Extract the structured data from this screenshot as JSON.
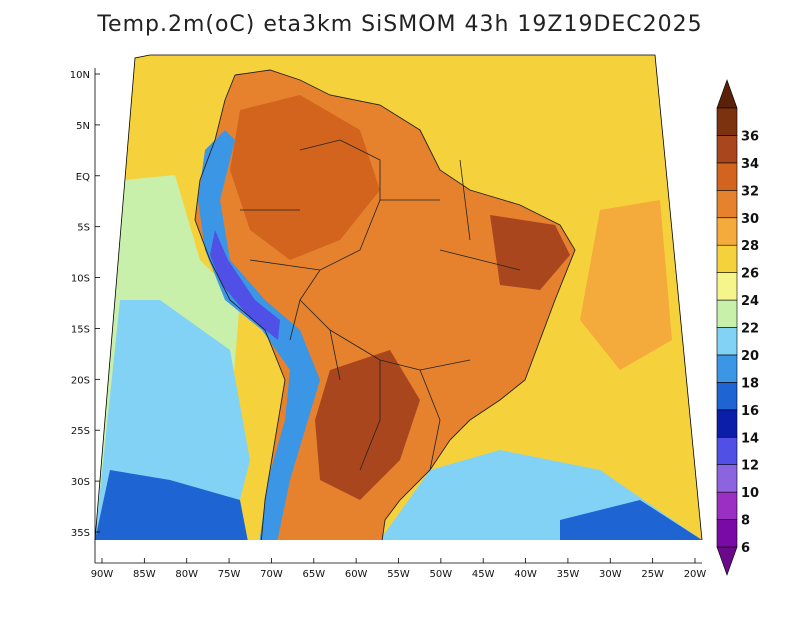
{
  "title": "Temp.2m(oC) eta3km SiSMOM 43h 19Z19DEC2025",
  "map": {
    "type": "filled-contour-map",
    "variable": "2m temperature",
    "units": "oC",
    "region": "South America",
    "lat_labels": [
      "10N",
      "5N",
      "EQ",
      "5S",
      "10S",
      "15S",
      "20S",
      "25S",
      "30S",
      "35S"
    ],
    "lon_labels": [
      "90W",
      "85W",
      "80W",
      "75W",
      "70W",
      "65W",
      "60W",
      "55W",
      "50W",
      "45W",
      "40W",
      "35W",
      "30W",
      "25W",
      "20W"
    ],
    "lat_values": [
      10,
      5,
      0,
      -5,
      -10,
      -15,
      -20,
      -25,
      -30,
      -35
    ],
    "lon_values": [
      -90,
      -85,
      -80,
      -75,
      -70,
      -65,
      -60,
      -55,
      -50,
      -45,
      -40,
      -35,
      -30,
      -25,
      -20
    ]
  },
  "colorbar": {
    "levels": [
      "6",
      "8",
      "10",
      "12",
      "14",
      "16",
      "18",
      "20",
      "22",
      "24",
      "26",
      "28",
      "30",
      "32",
      "34",
      "36"
    ],
    "colors": [
      "#7a0aa6",
      "#9b2fc4",
      "#8c64e0",
      "#5050e6",
      "#0a1eaa",
      "#1e64d2",
      "#3c96e6",
      "#82d2f5",
      "#c8f0aa",
      "#f5f58c",
      "#f5d23c",
      "#f5aa3c",
      "#e6822d",
      "#d2641e",
      "#aa461e",
      "#7d320f"
    ],
    "min_color": "#6a0a8a",
    "max_color": "#5a2008"
  },
  "palette": {
    "ocean_cool": "#82d2f5",
    "ocean_mid": "#c8f0aa",
    "ocean_warm": "#f5d23c",
    "ocean_hot": "#f5aa3c",
    "land_warm": "#e6822d",
    "land_hot": "#d2641e",
    "land_hottest": "#aa461e",
    "andes_cold": "#3c96e6",
    "andes_coldest": "#5050e6",
    "south_ocean_deep": "#1e64d2",
    "border": "#222222"
  }
}
